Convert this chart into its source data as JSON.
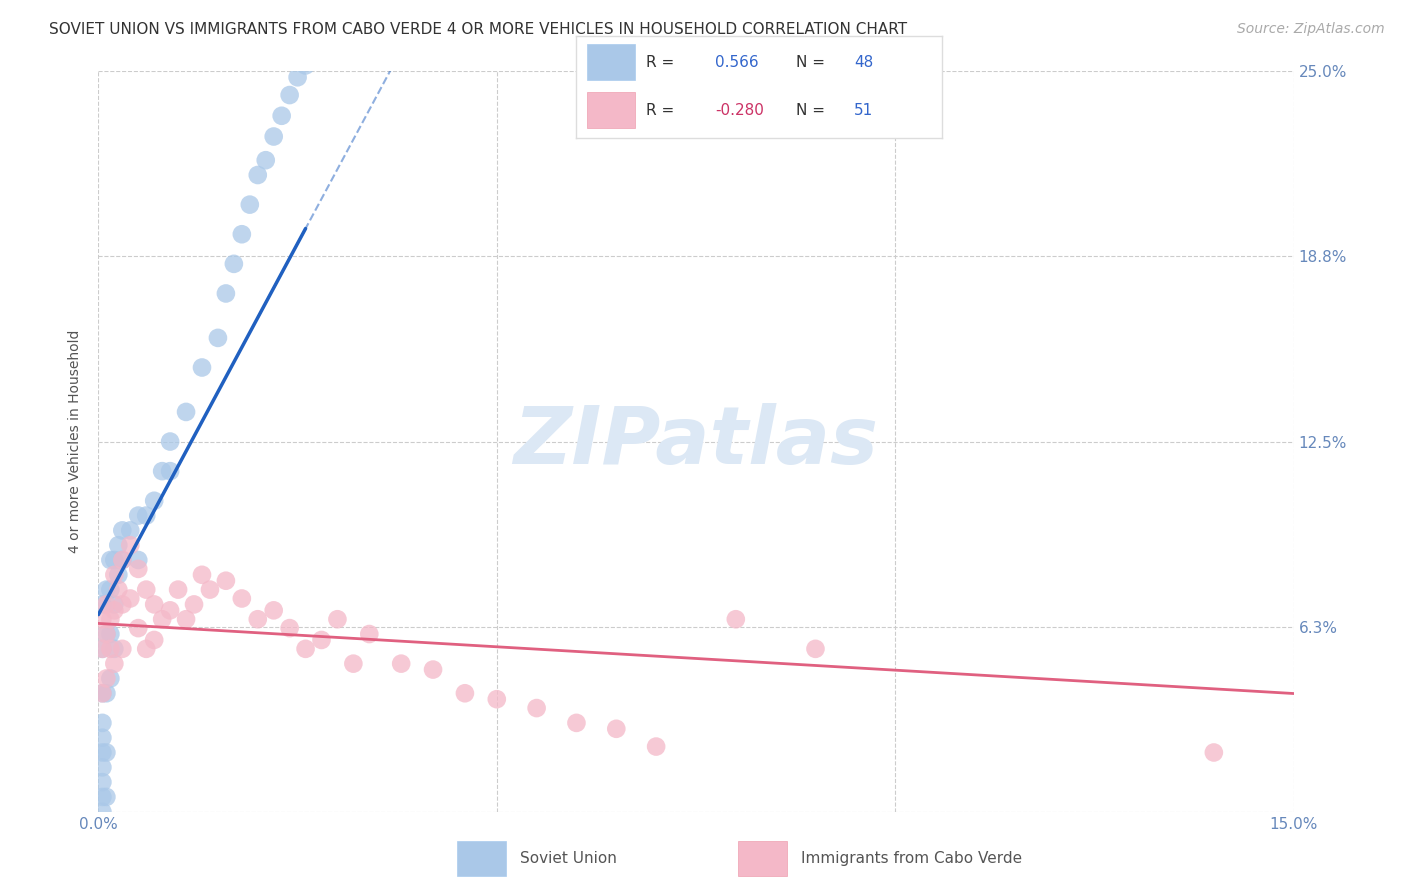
{
  "title": "SOVIET UNION VS IMMIGRANTS FROM CABO VERDE 4 OR MORE VEHICLES IN HOUSEHOLD CORRELATION CHART",
  "source": "Source: ZipAtlas.com",
  "ylabel": "4 or more Vehicles in Household",
  "xlim": [
    0.0,
    0.15
  ],
  "ylim": [
    0.0,
    0.25
  ],
  "yticks": [
    0.0,
    0.0625,
    0.125,
    0.1875,
    0.25
  ],
  "yticklabels_right": [
    "",
    "6.3%",
    "12.5%",
    "18.8%",
    "25.0%"
  ],
  "grid_color": "#cccccc",
  "background_color": "#ffffff",
  "soviet_color": "#aac8e8",
  "cabo_color": "#f4b8c8",
  "soviet_line_color": "#2060c0",
  "cabo_line_color": "#e06080",
  "R_soviet": 0.566,
  "N_soviet": 48,
  "R_cabo": -0.28,
  "N_cabo": 51,
  "legend_label_soviet": "Soviet Union",
  "legend_label_cabo": "Immigrants from Cabo Verde",
  "watermark": "ZIPatlas",
  "watermark_color": "#dce8f5",
  "title_fontsize": 11,
  "axis_fontsize": 10,
  "tick_fontsize": 11,
  "source_fontsize": 10
}
